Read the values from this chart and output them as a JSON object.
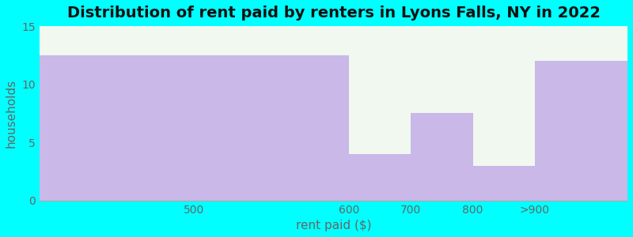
{
  "title": "Distribution of rent paid by renters in Lyons Falls, NY in 2022",
  "xlabel": "rent paid ($)",
  "ylabel": "households",
  "bar_lefts": [
    0,
    5,
    6,
    7,
    8
  ],
  "bar_widths": [
    5,
    1,
    1,
    1,
    1.5
  ],
  "values": [
    12.5,
    4,
    7.5,
    3,
    12
  ],
  "xtick_positions": [
    2.5,
    5,
    6,
    7,
    8
  ],
  "xtick_labels": [
    "500",
    "600",
    "700",
    "800",
    ">900"
  ],
  "bar_color": "#C9B8E8",
  "bar_edgecolor": "#C9B8E8",
  "background_color": "#00FFFF",
  "plot_bg_color": "#F0F8F0",
  "ylim": [
    0,
    15
  ],
  "yticks": [
    0,
    5,
    10,
    15
  ],
  "title_fontsize": 14,
  "axis_label_fontsize": 11,
  "tick_fontsize": 10,
  "tick_color": "#666666",
  "label_color": "#666666",
  "title_color": "#111111"
}
